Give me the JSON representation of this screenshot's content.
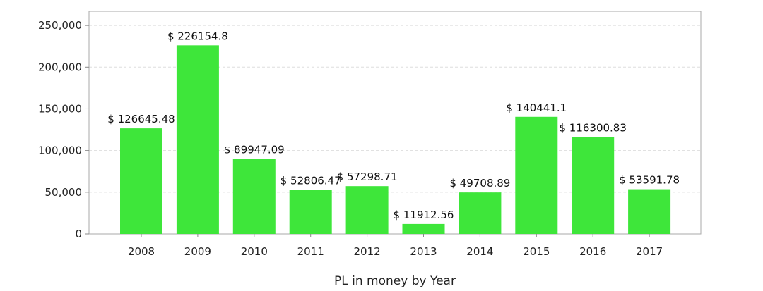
{
  "chart_data": {
    "type": "bar",
    "title": "",
    "xlabel": "PL in money by Year",
    "ylabel": "",
    "categories": [
      "2008",
      "2009",
      "2010",
      "2011",
      "2012",
      "2013",
      "2014",
      "2015",
      "2016",
      "2017"
    ],
    "series": [
      {
        "values": [
          126645.48,
          226154.8,
          89947.09,
          52806.47,
          57298.71,
          11912.56,
          49708.89,
          140441.1,
          116300.83,
          53591.78
        ]
      }
    ],
    "bar_labels": [
      "$ 126645.48",
      "$ 226154.8",
      "$ 89947.09",
      "$ 52806.47",
      "$ 57298.71",
      "$ 11912.56",
      "$ 49708.89",
      "$ 140441.1",
      "$ 116300.83",
      "$ 53591.78"
    ],
    "ylim": [
      0,
      267000
    ],
    "yticks": [
      0,
      50000,
      100000,
      150000,
      200000,
      250000
    ],
    "ytick_labels": [
      "0",
      "50,000",
      "100,000",
      "150,000",
      "200,000",
      "250,000"
    ],
    "grid": true,
    "legend": "none",
    "colors": {
      "bar": "#3ee63a",
      "grid": "#dddddd",
      "frame": "#aaaaaa"
    }
  }
}
